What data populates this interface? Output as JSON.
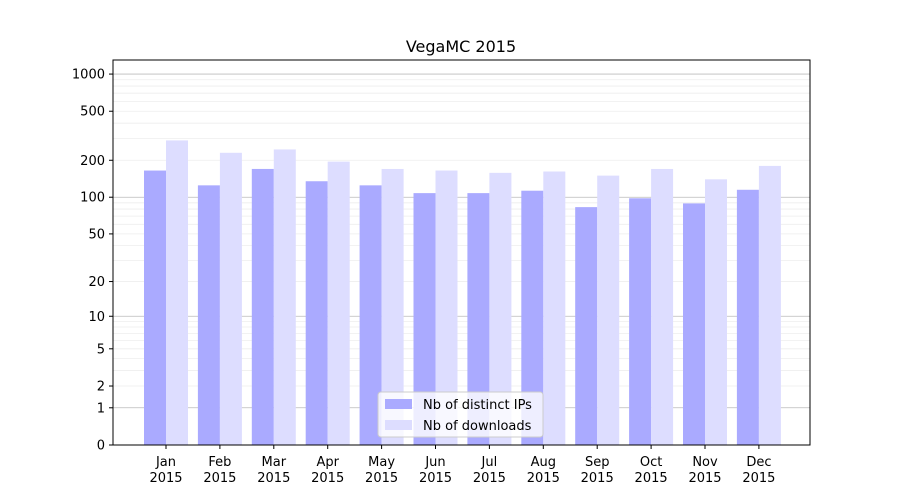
{
  "chart_data": {
    "type": "bar",
    "title": "VegaMC 2015",
    "xlabel": "",
    "ylabel": "",
    "yscale": "symlog",
    "ylim": [
      0,
      1300
    ],
    "yticks": [
      0,
      1,
      2,
      5,
      10,
      20,
      50,
      100,
      200,
      500,
      1000
    ],
    "ytick_labels": [
      "0",
      "1",
      "2",
      "5",
      "10",
      "20",
      "50",
      "100",
      "200",
      "500",
      "1000"
    ],
    "categories": [
      "Jan\n2015",
      "Feb\n2015",
      "Mar\n2015",
      "Apr\n2015",
      "May\n2015",
      "Jun\n2015",
      "Jul\n2015",
      "Aug\n2015",
      "Sep\n2015",
      "Oct\n2015",
      "Nov\n2015",
      "Dec\n2015"
    ],
    "series": [
      {
        "name": "Nb of distinct IPs",
        "color": "#aaaaff",
        "values": [
          165,
          125,
          170,
          135,
          125,
          108,
          108,
          113,
          83,
          98,
          89,
          115
        ]
      },
      {
        "name": "Nb of downloads",
        "color": "#ddddff",
        "values": [
          290,
          230,
          245,
          195,
          170,
          165,
          158,
          162,
          150,
          170,
          140,
          180
        ]
      }
    ],
    "legend_position": "bottom-center",
    "grid": true
  }
}
